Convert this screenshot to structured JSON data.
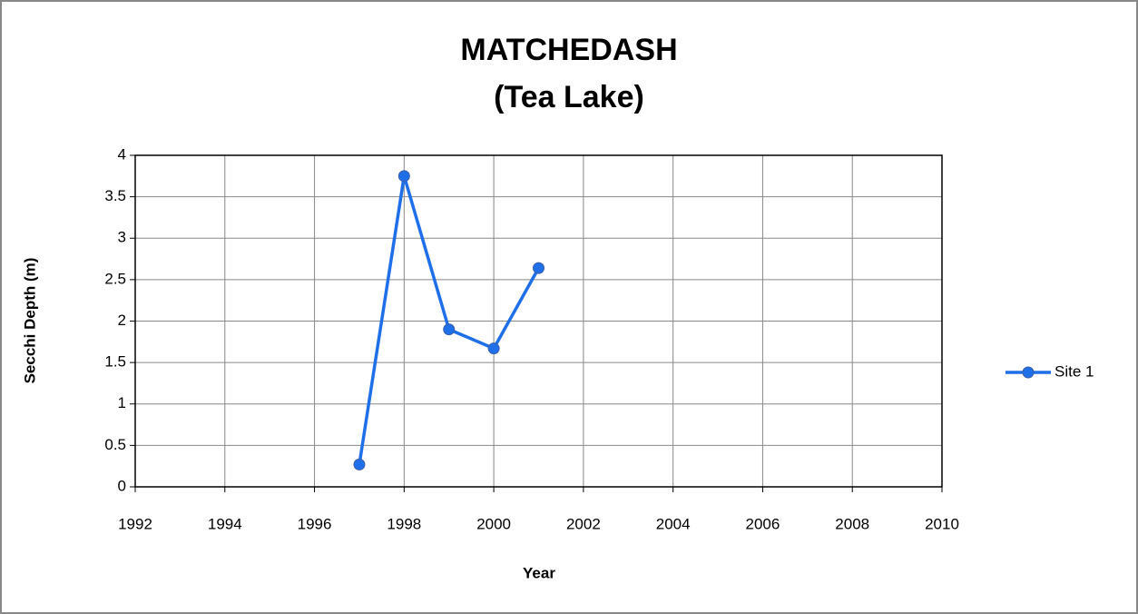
{
  "chart_data": {
    "type": "line",
    "title": [
      "MATCHEDASH",
      "(Tea Lake)"
    ],
    "x_label": "Year",
    "y_label": "Secchi Depth (m)",
    "x": [
      1997,
      1998,
      1999,
      2000,
      2001
    ],
    "series": [
      {
        "name": "Site 1",
        "color": "#1f6fe8",
        "values": [
          0.27,
          3.75,
          1.9,
          1.67,
          2.64
        ]
      }
    ],
    "xlim": [
      1992,
      2010
    ],
    "xticks": [
      1992,
      1994,
      1996,
      1998,
      2000,
      2002,
      2004,
      2006,
      2008,
      2010
    ],
    "ylim": [
      0,
      4
    ],
    "yticks": [
      0,
      0.5,
      1,
      1.5,
      2,
      2.5,
      3,
      3.5,
      4
    ],
    "grid": true,
    "legend": "right"
  }
}
